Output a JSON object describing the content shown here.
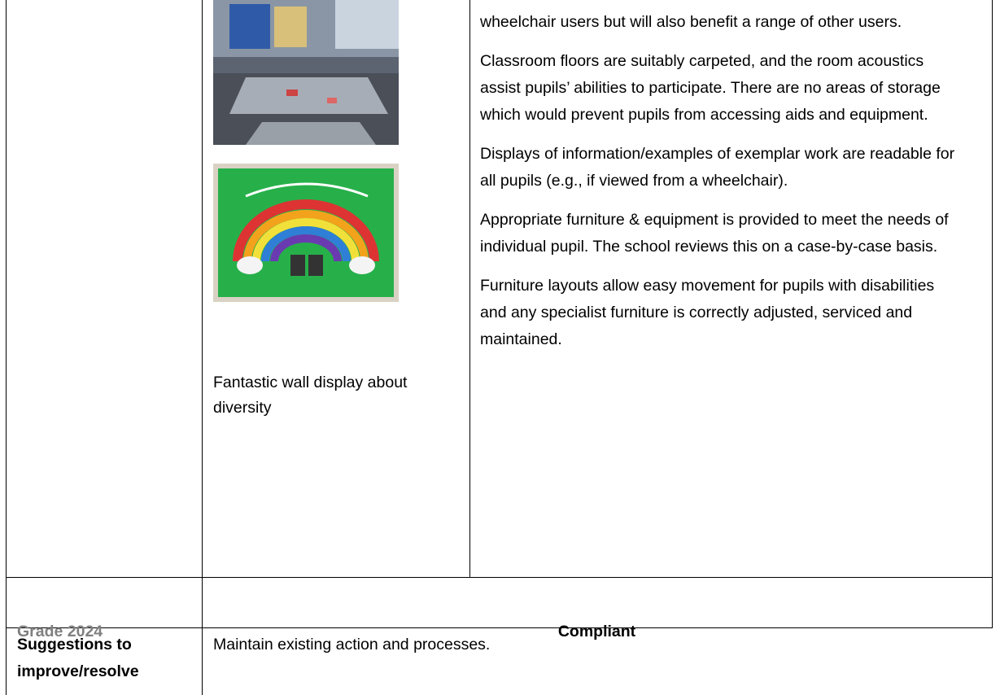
{
  "table": {
    "rows": [
      {
        "caption": "Fantastic wall display about diversity",
        "paragraphs": [
          "wheelchair users but will also benefit a range of other users.",
          "Classroom floors are suitably carpeted, and the room acoustics assist pupils’ abilities to participate. There are no areas of storage which would prevent pupils from accessing aids and equipment.",
          "Displays of information/examples of exemplar work are readable for all pupils (e.g., if viewed from a wheelchair).",
          "Appropriate furniture & equipment is provided to meet the needs of individual pupil. The school reviews this on a case-by-case basis.",
          "Furniture layouts allow easy movement for pupils with disabilities and any specialist furniture is correctly adjusted, serviced and maintained."
        ]
      },
      {
        "label": "Grade 2024",
        "value": "Compliant"
      },
      {
        "label": "Suggestions to improve/resolve",
        "value": "Maintain existing action and processes."
      }
    ]
  }
}
